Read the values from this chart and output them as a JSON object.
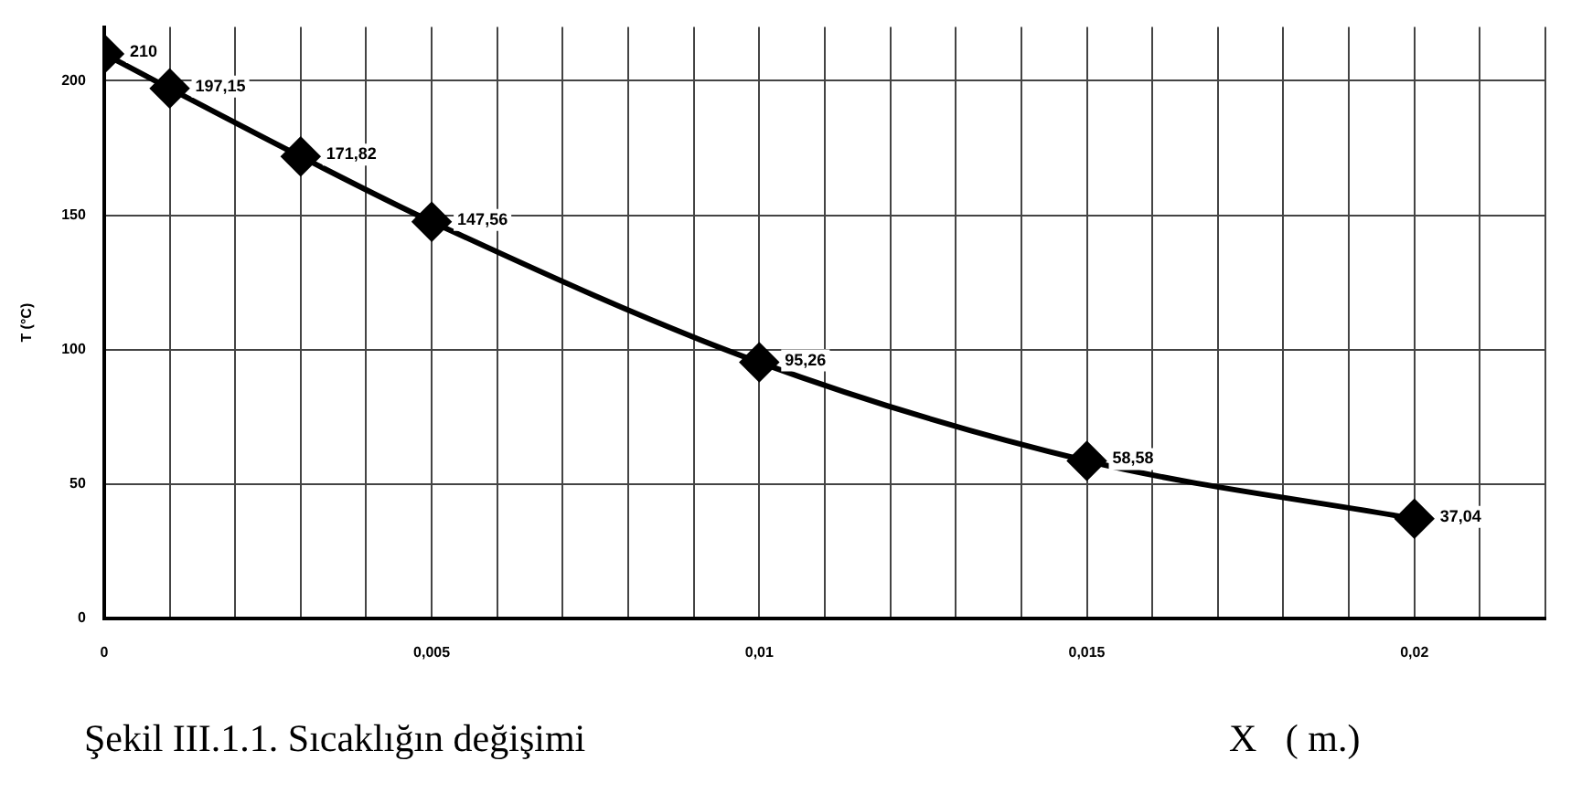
{
  "chart_data": {
    "type": "line",
    "ylabel": "T (°C)",
    "xlabel": "X   ( m.)",
    "annotations": [
      "Şekil III.1.1. Sıcaklığın değişimi"
    ],
    "x": [
      0,
      0.001,
      0.003,
      0.005,
      0.01,
      0.015,
      0.02
    ],
    "series": [
      {
        "color": "#000000",
        "values": [
          210,
          197.15,
          171.82,
          147.56,
          95.26,
          58.58,
          37.04
        ],
        "value_labels": [
          "210",
          "197,15",
          "171,82",
          "147,56",
          "95,26",
          "58,58",
          "37,04"
        ]
      }
    ],
    "xlim": [
      0,
      0.022
    ],
    "xticks": [
      {
        "value": 0,
        "label": "0"
      },
      {
        "value": 0.001,
        "label": null
      },
      {
        "value": 0.002,
        "label": null
      },
      {
        "value": 0.003,
        "label": null
      },
      {
        "value": 0.004,
        "label": null
      },
      {
        "value": 0.005,
        "label": "0,005"
      },
      {
        "value": 0.006,
        "label": null
      },
      {
        "value": 0.007,
        "label": null
      },
      {
        "value": 0.008,
        "label": null
      },
      {
        "value": 0.009,
        "label": null
      },
      {
        "value": 0.01,
        "label": "0,01"
      },
      {
        "value": 0.011,
        "label": null
      },
      {
        "value": 0.012,
        "label": null
      },
      {
        "value": 0.013,
        "label": null
      },
      {
        "value": 0.014,
        "label": null
      },
      {
        "value": 0.015,
        "label": "0,015"
      },
      {
        "value": 0.016,
        "label": null
      },
      {
        "value": 0.017,
        "label": null
      },
      {
        "value": 0.018,
        "label": null
      },
      {
        "value": 0.019,
        "label": null
      },
      {
        "value": 0.02,
        "label": "0,02"
      },
      {
        "value": 0.021,
        "label": null
      },
      {
        "value": 0.022,
        "label": null
      }
    ],
    "ylim": [
      0,
      220
    ],
    "yticks": [
      0,
      50,
      100,
      150,
      200
    ],
    "grid": true,
    "legend": false,
    "marker": "diamond",
    "line_style": "solid"
  }
}
